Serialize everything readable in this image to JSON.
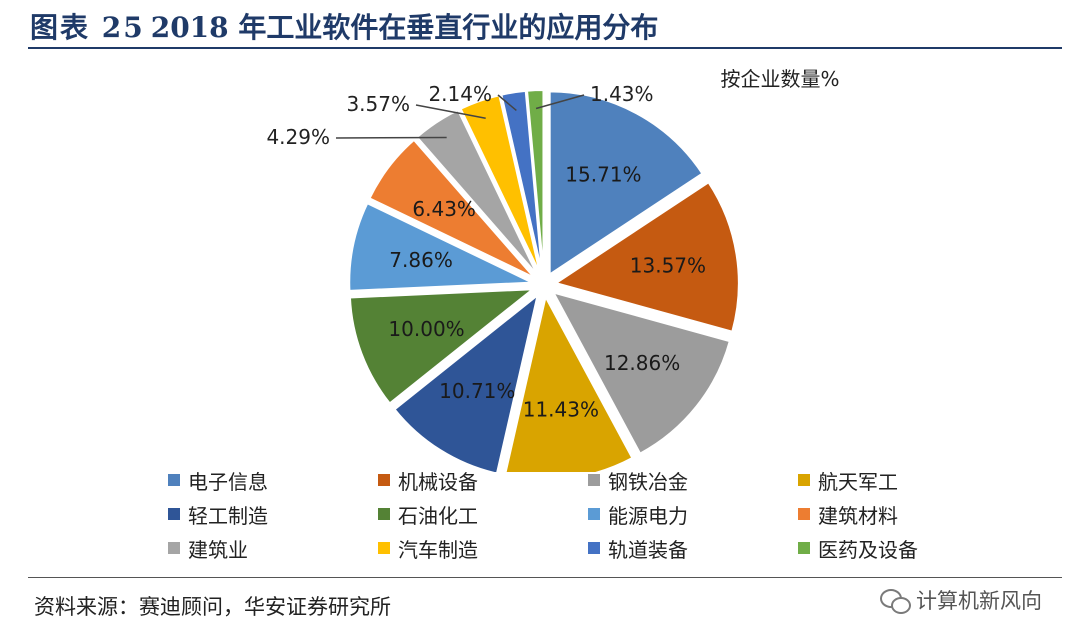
{
  "figure": {
    "label": "图表 25",
    "title": "2018 年工业软件在垂直行业的应用分布",
    "source": "资料来源：赛迪顾问，华安证券研究所",
    "watermark": "计算机新风向",
    "watermark_icon": "wechat-icon"
  },
  "chart_data": {
    "type": "pie",
    "title": "按企业数量%",
    "series": [
      {
        "name": "电子信息",
        "value": 15.71,
        "label": "15.71%",
        "color": "#4f81bd"
      },
      {
        "name": "机械设备",
        "value": 13.57,
        "label": "13.57%",
        "color": "#c55a11"
      },
      {
        "name": "钢铁冶金",
        "value": 12.86,
        "label": "12.86%",
        "color": "#9c9c9c"
      },
      {
        "name": "航天军工",
        "value": 11.43,
        "label": "11.43%",
        "color": "#d9a400"
      },
      {
        "name": "轻工制造",
        "value": 10.71,
        "label": "10.71%",
        "color": "#2f5597"
      },
      {
        "name": "石油化工",
        "value": 10.0,
        "label": "10.00%",
        "color": "#548235"
      },
      {
        "name": "能源电力",
        "value": 7.86,
        "label": "7.86%",
        "color": "#5b9bd5"
      },
      {
        "name": "建筑材料",
        "value": 6.43,
        "label": "6.43%",
        "color": "#ed7d31"
      },
      {
        "name": "建筑业",
        "value": 4.29,
        "label": "4.29%",
        "color": "#a5a5a5"
      },
      {
        "name": "汽车制造",
        "value": 3.57,
        "label": "3.57%",
        "color": "#ffc000"
      },
      {
        "name": "轨道装备",
        "value": 2.14,
        "label": "2.14%",
        "color": "#4472c4"
      },
      {
        "name": "医药及设备",
        "value": 1.43,
        "label": "1.43%",
        "color": "#70ad47"
      }
    ],
    "label_position": "inside for large slices, outside with leader lines for small slices",
    "legend_position": "bottom"
  }
}
